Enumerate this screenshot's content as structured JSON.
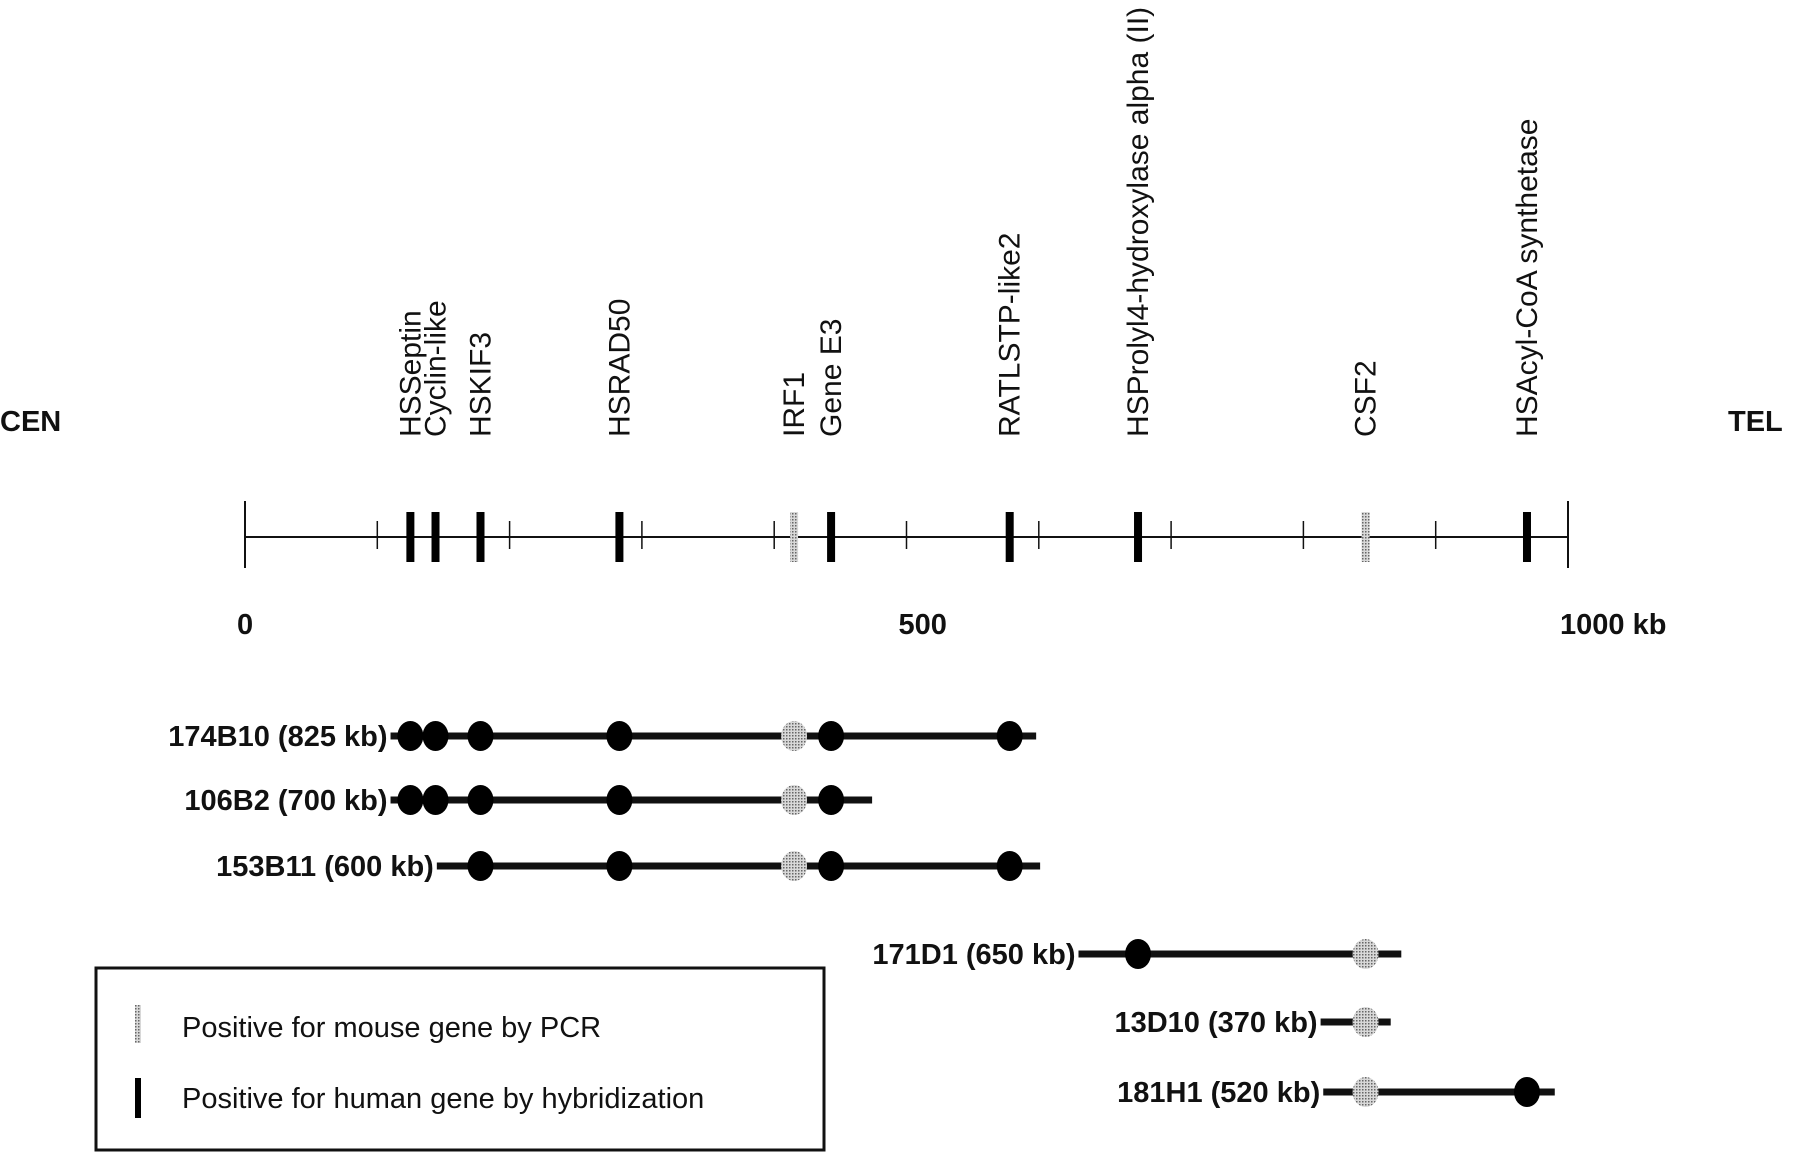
{
  "end_labels": {
    "left": "CEN",
    "right": "TEL"
  },
  "axis": {
    "min": 0,
    "max": 1000,
    "unit_label": "kb",
    "tick_labels": [
      {
        "value": 0,
        "text": "0"
      },
      {
        "value": 500,
        "text": "500"
      },
      {
        "value": 1000,
        "text": "1000 kb"
      }
    ],
    "minor_ticks": [
      100,
      200,
      300,
      400,
      500,
      600,
      700,
      800,
      900
    ]
  },
  "genes": [
    {
      "id": "septin",
      "name": "HSSeptin",
      "pos": 125,
      "type": "human"
    },
    {
      "id": "cyclin",
      "name": "Cyclin-like",
      "pos": 144,
      "type": "human"
    },
    {
      "id": "kif3",
      "name": "HSKIF3",
      "pos": 178,
      "type": "human"
    },
    {
      "id": "rad50",
      "name": "HSRAD50",
      "pos": 283,
      "type": "human"
    },
    {
      "id": "irf1",
      "name": "IRF1",
      "pos": 415,
      "type": "mouse"
    },
    {
      "id": "e3",
      "name": "Gene E3",
      "pos": 443,
      "type": "human"
    },
    {
      "id": "ratl",
      "name": "RATLSTP-like2",
      "pos": 578,
      "type": "human"
    },
    {
      "id": "prolyl",
      "name": "HSProlyl4-hydroxylase alpha (II)",
      "pos": 675,
      "type": "human"
    },
    {
      "id": "csf2",
      "name": "CSF2",
      "pos": 847,
      "type": "mouse"
    },
    {
      "id": "acyl",
      "name": "HSAcyl-CoA synthetase",
      "pos": 969,
      "type": "human"
    }
  ],
  "clones": [
    {
      "label": "174B10 (825 kb)",
      "start": 110,
      "end": 598,
      "hits": [
        "septin",
        "cyclin",
        "kif3",
        "rad50",
        "irf1",
        "e3",
        "ratl"
      ]
    },
    {
      "label": "106B2 (700 kb)",
      "start": 110,
      "end": 474,
      "hits": [
        "septin",
        "cyclin",
        "kif3",
        "rad50",
        "irf1",
        "e3"
      ]
    },
    {
      "label": "153B11 (600 kb)",
      "start": 145,
      "end": 601,
      "hits": [
        "kif3",
        "rad50",
        "irf1",
        "e3",
        "ratl"
      ]
    },
    {
      "label": "171D1 (650 kb)",
      "start": 630,
      "end": 874,
      "hits": [
        "prolyl",
        "csf2"
      ]
    },
    {
      "label": "13D10 (370 kb)",
      "start": 813,
      "end": 866,
      "hits": [
        "csf2"
      ]
    },
    {
      "label": "181H1 (520 kb)",
      "start": 815,
      "end": 990,
      "hits": [
        "csf2",
        "acyl"
      ]
    }
  ],
  "legend": {
    "mouse": "Positive for mouse gene by PCR",
    "human": "Positive for human gene by hybridization"
  },
  "colors": {
    "human": "#000000",
    "mouse": "#9a9a9a",
    "line": "#111111"
  }
}
